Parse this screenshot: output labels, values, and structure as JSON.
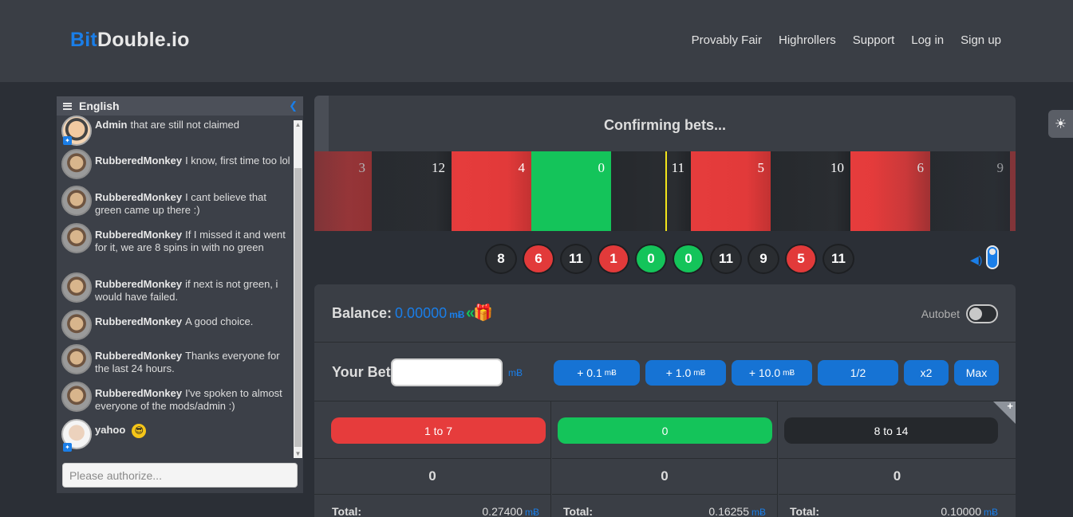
{
  "brand": {
    "part1": "Bit",
    "part2": "Double.io"
  },
  "nav": [
    {
      "label": "Provably Fair"
    },
    {
      "label": "Highrollers"
    },
    {
      "label": "Support"
    },
    {
      "label": "Log in"
    },
    {
      "label": "Sign up"
    }
  ],
  "chat": {
    "language": "English",
    "input_placeholder": "Please authorize...",
    "messages": [
      {
        "user": "Admin",
        "text": "that are still not claimed",
        "avatar": "admin",
        "mod": true
      },
      {
        "user": "RubberedMonkey",
        "text": "I know, first time too lol",
        "avatar": "monkey"
      },
      {
        "user": "RubberedMonkey",
        "text": "I cant believe that green came up there :)",
        "avatar": "monkey"
      },
      {
        "user": "RubberedMonkey",
        "text": "If I missed it and went for it, we are 8 spins in with no green",
        "avatar": "monkey"
      },
      {
        "user": "RubberedMonkey",
        "text": "if next is not green, i would have failed.",
        "avatar": "monkey"
      },
      {
        "user": "RubberedMonkey",
        "text": "A good choice.",
        "avatar": "monkey"
      },
      {
        "user": "RubberedMonkey",
        "text": "Thanks everyone for the last 24 hours.",
        "avatar": "monkey"
      },
      {
        "user": "RubberedMonkey",
        "text": "I've spoken to almost everyone of the mods/admin :)",
        "avatar": "monkey"
      },
      {
        "user": "yahoo",
        "text": "",
        "avatar": "yahoo",
        "mod": true,
        "emoji": "sunglasses"
      }
    ]
  },
  "game": {
    "status": "Confirming bets...",
    "wheel": [
      {
        "n": "3",
        "c": "red"
      },
      {
        "n": "12",
        "c": "black"
      },
      {
        "n": "4",
        "c": "red"
      },
      {
        "n": "0",
        "c": "green"
      },
      {
        "n": "11",
        "c": "black"
      },
      {
        "n": "5",
        "c": "red"
      },
      {
        "n": "10",
        "c": "black"
      },
      {
        "n": "6",
        "c": "red"
      },
      {
        "n": "9",
        "c": "black"
      }
    ],
    "history": [
      {
        "n": "8",
        "c": "black"
      },
      {
        "n": "6",
        "c": "red"
      },
      {
        "n": "11",
        "c": "black"
      },
      {
        "n": "1",
        "c": "red"
      },
      {
        "n": "0",
        "c": "green"
      },
      {
        "n": "0",
        "c": "green"
      },
      {
        "n": "11",
        "c": "black"
      },
      {
        "n": "9",
        "c": "black"
      },
      {
        "n": "5",
        "c": "red"
      },
      {
        "n": "11",
        "c": "black"
      }
    ]
  },
  "panel": {
    "balance_label": "Balance:",
    "balance_value": "0.00000",
    "currency": "mɃ",
    "autobet_label": "Autobet",
    "your_bet_label": "Your Bet",
    "quick": [
      {
        "label": "+ 0.1",
        "unit": "mɃ"
      },
      {
        "label": "+ 1.0",
        "unit": "mɃ"
      },
      {
        "label": "+ 10.0",
        "unit": "mɃ"
      },
      {
        "label": "1/2",
        "unit": ""
      },
      {
        "label": "x2",
        "unit": ""
      },
      {
        "label": "Max",
        "unit": ""
      }
    ],
    "columns": [
      {
        "label": "1 to 7",
        "color": "red",
        "amount": "0",
        "total_label": "Total:",
        "total": "0.27400"
      },
      {
        "label": "0",
        "color": "green",
        "amount": "0",
        "total_label": "Total:",
        "total": "0.16255"
      },
      {
        "label": "8 to 14",
        "color": "black",
        "amount": "0",
        "total_label": "Total:",
        "total": "0.10000"
      }
    ],
    "corner_plus": "+"
  }
}
